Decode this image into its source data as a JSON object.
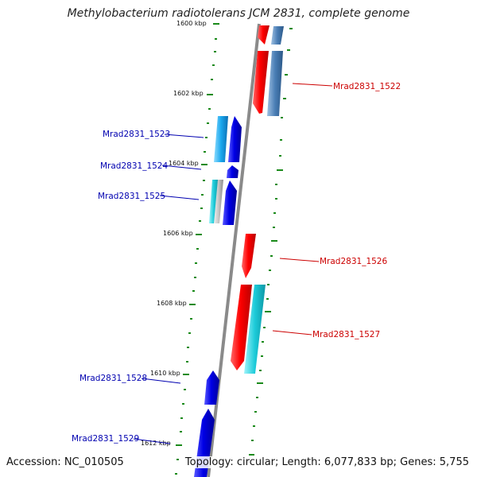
{
  "title": "Methylobacterium radiotolerans JCM 2831, complete genome",
  "accession": "Accession: NC_010505",
  "topology": "Topology: circular; Length: 6,077,833 bp; Genes: 5,755",
  "colors": {
    "backbone": "#888888",
    "reverse_gene": "#ff1a1a",
    "forward_gene": "#1010e0",
    "cyan_feature": "#20c8d8",
    "steel_feature": "#4a7eb5",
    "tick": "#1a8a1a",
    "reverse_label": "#cc0000",
    "forward_label": "#0000b0"
  },
  "ticks": [
    {
      "label": "1600 kbp"
    },
    {
      "label": "1602 kbp"
    },
    {
      "label": "1604 kbp"
    },
    {
      "label": "1606 kbp"
    },
    {
      "label": "1608 kbp"
    },
    {
      "label": "1610 kbp"
    },
    {
      "label": "1612 kbp"
    }
  ],
  "gene_labels": [
    {
      "text": "Mrad2831_1522",
      "strand": "reverse"
    },
    {
      "text": "Mrad2831_1523",
      "strand": "forward"
    },
    {
      "text": "Mrad2831_1524",
      "strand": "forward"
    },
    {
      "text": "Mrad2831_1525",
      "strand": "forward"
    },
    {
      "text": "Mrad2831_1526",
      "strand": "reverse"
    },
    {
      "text": "Mrad2831_1527",
      "strand": "reverse"
    },
    {
      "text": "Mrad2831_1528",
      "strand": "forward"
    },
    {
      "text": "Mrad2831_1529",
      "strand": "forward"
    }
  ]
}
